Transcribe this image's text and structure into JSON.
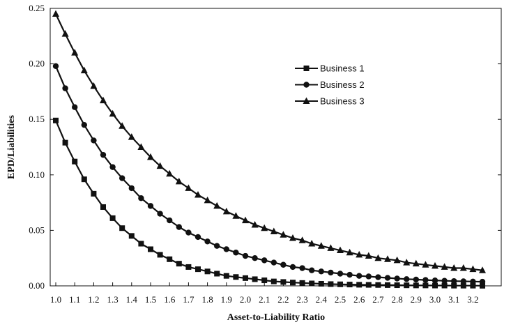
{
  "chart_data": {
    "type": "line",
    "title": "",
    "xlabel": "Asset-to-Liability Ratio",
    "ylabel": "EPD/Liabilities",
    "xlim": [
      1.0,
      3.25
    ],
    "ylim": [
      0.0,
      0.25
    ],
    "x_ticks": [
      "1.0",
      "1.1",
      "1.2",
      "1.3",
      "1.4",
      "1.5",
      "1.6",
      "1.7",
      "1.8",
      "1.9",
      "2.0",
      "2.1",
      "2.2",
      "2.3",
      "2.4",
      "2.5",
      "2.6",
      "2.7",
      "2.8",
      "2.9",
      "3.0",
      "3.1",
      "3.2"
    ],
    "y_ticks": [
      "0.00",
      "0.05",
      "0.10",
      "0.15",
      "0.20",
      "0.25"
    ],
    "grid": false,
    "legend_position": "top-right",
    "x": [
      1.0,
      1.05,
      1.1,
      1.15,
      1.2,
      1.25,
      1.3,
      1.35,
      1.4,
      1.45,
      1.5,
      1.55,
      1.6,
      1.65,
      1.7,
      1.75,
      1.8,
      1.85,
      1.9,
      1.95,
      2.0,
      2.05,
      2.1,
      2.15,
      2.2,
      2.25,
      2.3,
      2.35,
      2.4,
      2.45,
      2.5,
      2.55,
      2.6,
      2.65,
      2.7,
      2.75,
      2.8,
      2.85,
      2.9,
      2.95,
      3.0,
      3.05,
      3.1,
      3.15,
      3.2,
      3.25
    ],
    "series": [
      {
        "name": "Business 1",
        "marker": "square",
        "values": [
          0.149,
          0.129,
          0.112,
          0.096,
          0.083,
          0.071,
          0.061,
          0.052,
          0.045,
          0.038,
          0.033,
          0.028,
          0.024,
          0.02,
          0.017,
          0.015,
          0.013,
          0.011,
          0.009,
          0.008,
          0.007,
          0.006,
          0.005,
          0.004,
          0.0035,
          0.003,
          0.0026,
          0.0022,
          0.0019,
          0.0016,
          0.0014,
          0.0012,
          0.001,
          0.0009,
          0.0008,
          0.0007,
          0.0006,
          0.0005,
          0.0004,
          0.0004,
          0.0003,
          0.0003,
          0.0002,
          0.0002,
          0.0002,
          0.0001
        ]
      },
      {
        "name": "Business 2",
        "marker": "circle",
        "values": [
          0.198,
          0.178,
          0.161,
          0.145,
          0.131,
          0.118,
          0.107,
          0.097,
          0.088,
          0.079,
          0.072,
          0.065,
          0.059,
          0.053,
          0.048,
          0.044,
          0.04,
          0.036,
          0.033,
          0.03,
          0.027,
          0.025,
          0.023,
          0.021,
          0.019,
          0.017,
          0.016,
          0.014,
          0.013,
          0.012,
          0.011,
          0.01,
          0.009,
          0.0085,
          0.0078,
          0.0072,
          0.0066,
          0.0061,
          0.0057,
          0.0053,
          0.0049,
          0.0046,
          0.0043,
          0.0041,
          0.0039,
          0.0037
        ]
      },
      {
        "name": "Business 3",
        "marker": "triangle",
        "values": [
          0.245,
          0.227,
          0.21,
          0.194,
          0.18,
          0.167,
          0.155,
          0.144,
          0.134,
          0.125,
          0.116,
          0.108,
          0.101,
          0.094,
          0.088,
          0.082,
          0.077,
          0.072,
          0.067,
          0.063,
          0.059,
          0.055,
          0.052,
          0.049,
          0.046,
          0.043,
          0.041,
          0.038,
          0.036,
          0.034,
          0.032,
          0.03,
          0.028,
          0.027,
          0.025,
          0.024,
          0.023,
          0.021,
          0.02,
          0.019,
          0.018,
          0.017,
          0.016,
          0.016,
          0.015,
          0.014
        ]
      }
    ]
  }
}
